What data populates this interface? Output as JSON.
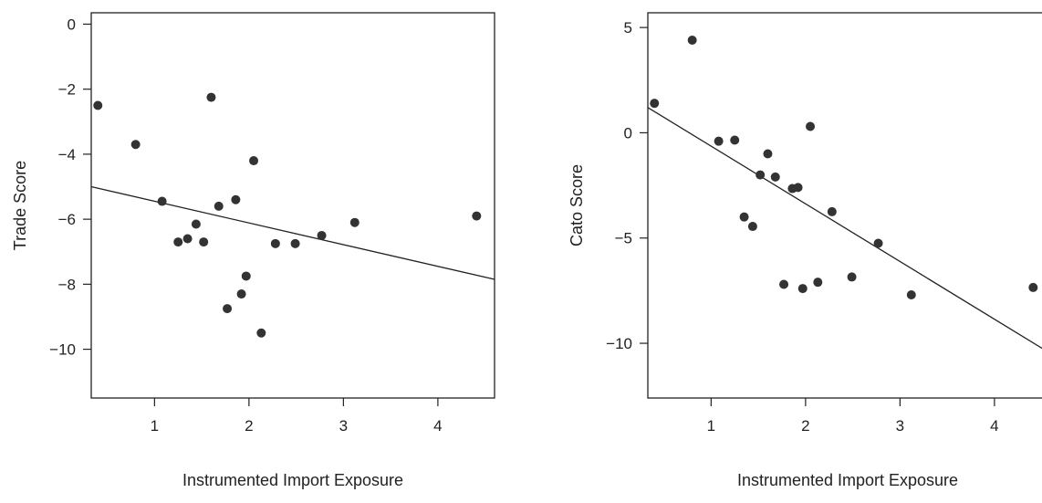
{
  "chart_data": [
    {
      "type": "scatter",
      "xlabel": "Instrumented Import Exposure",
      "ylabel": "Trade Score",
      "xlim": [
        0.33,
        4.6
      ],
      "ylim": [
        -11.5,
        0.35
      ],
      "xticks": [
        1,
        2,
        3,
        4
      ],
      "yticks": [
        0,
        -2,
        -4,
        -6,
        -8,
        -10
      ],
      "grid": false,
      "points": [
        {
          "x": 0.4,
          "y": -2.5
        },
        {
          "x": 0.8,
          "y": -3.7
        },
        {
          "x": 1.08,
          "y": -5.45
        },
        {
          "x": 1.25,
          "y": -6.7
        },
        {
          "x": 1.35,
          "y": -6.6
        },
        {
          "x": 1.44,
          "y": -6.15
        },
        {
          "x": 1.52,
          "y": -6.7
        },
        {
          "x": 1.6,
          "y": -2.25
        },
        {
          "x": 1.68,
          "y": -5.6
        },
        {
          "x": 1.77,
          "y": -8.75
        },
        {
          "x": 1.86,
          "y": -5.4
        },
        {
          "x": 1.92,
          "y": -8.3
        },
        {
          "x": 1.97,
          "y": -7.75
        },
        {
          "x": 2.05,
          "y": -4.2
        },
        {
          "x": 2.13,
          "y": -9.5
        },
        {
          "x": 2.28,
          "y": -6.75
        },
        {
          "x": 2.49,
          "y": -6.75
        },
        {
          "x": 2.77,
          "y": -6.5
        },
        {
          "x": 3.12,
          "y": -6.1
        },
        {
          "x": 4.41,
          "y": -5.9
        }
      ],
      "fit_line": {
        "x": [
          0.33,
          4.6
        ],
        "y": [
          -5.0,
          -7.85
        ]
      }
    },
    {
      "type": "scatter",
      "xlabel": "Instrumented Import Exposure",
      "ylabel": "Cato Score",
      "xlim": [
        0.33,
        4.6
      ],
      "ylim": [
        -12.6,
        5.7
      ],
      "xticks": [
        1,
        2,
        3,
        4
      ],
      "yticks": [
        5,
        0,
        -5,
        -10
      ],
      "grid": false,
      "points": [
        {
          "x": 0.4,
          "y": 1.4
        },
        {
          "x": 0.8,
          "y": 4.4
        },
        {
          "x": 1.08,
          "y": -0.4
        },
        {
          "x": 1.25,
          "y": -0.35
        },
        {
          "x": 1.35,
          "y": -4.0
        },
        {
          "x": 1.44,
          "y": -4.45
        },
        {
          "x": 1.52,
          "y": -2.0
        },
        {
          "x": 1.6,
          "y": -1.0
        },
        {
          "x": 1.68,
          "y": -2.1
        },
        {
          "x": 1.77,
          "y": -7.2
        },
        {
          "x": 1.86,
          "y": -2.65
        },
        {
          "x": 1.92,
          "y": -2.6
        },
        {
          "x": 1.97,
          "y": -7.4
        },
        {
          "x": 2.05,
          "y": 0.3
        },
        {
          "x": 2.13,
          "y": -7.1
        },
        {
          "x": 2.28,
          "y": -3.75
        },
        {
          "x": 2.49,
          "y": -6.85
        },
        {
          "x": 2.77,
          "y": -5.25
        },
        {
          "x": 3.12,
          "y": -7.7
        },
        {
          "x": 4.41,
          "y": -7.35
        }
      ],
      "fit_line": {
        "x": [
          0.33,
          4.6
        ],
        "y": [
          1.2,
          -10.5
        ]
      }
    }
  ]
}
